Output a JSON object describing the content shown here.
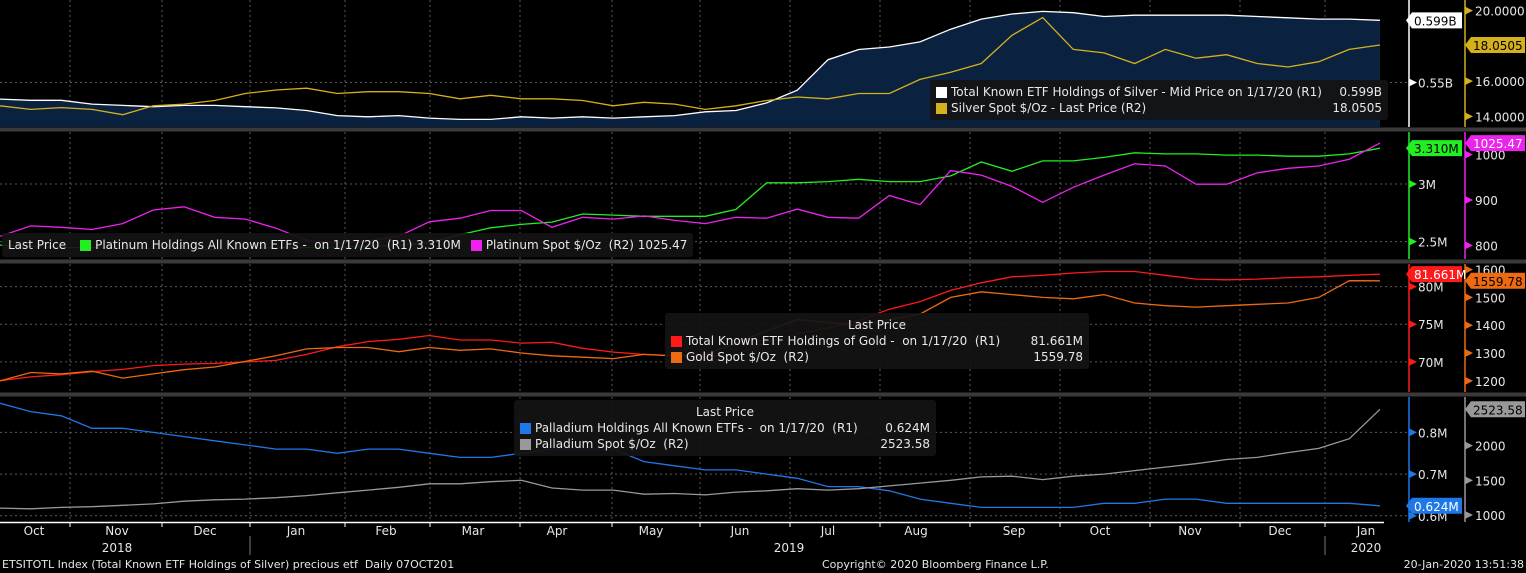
{
  "chart_data": [
    {
      "type": "line",
      "panel": "silver",
      "title": "Silver",
      "x_range": [
        "2018-10-01",
        "2020-01-17"
      ],
      "series": [
        {
          "name": "Total Known ETF Holdings of Silver - Mid Price on 1/17/20 (R1)",
          "axis": "R1",
          "color": "#ffffff",
          "area_fill": "#0a2240",
          "last_value": "0.599B",
          "values": [
            0.537,
            0.536,
            0.536,
            0.533,
            0.532,
            0.531,
            0.532,
            0.532,
            0.531,
            0.53,
            0.528,
            0.524,
            0.523,
            0.524,
            0.522,
            0.521,
            0.521,
            0.523,
            0.522,
            0.523,
            0.522,
            0.523,
            0.524,
            0.527,
            0.528,
            0.534,
            0.544,
            0.568,
            0.576,
            0.578,
            0.582,
            0.592,
            0.6,
            0.604,
            0.606,
            0.605,
            0.602,
            0.603,
            0.603,
            0.603,
            0.603,
            0.602,
            0.601,
            0.6,
            0.6,
            0.599
          ]
        },
        {
          "name": "Silver Spot $/Oz - Last Price (R2)",
          "axis": "R2",
          "color": "#d4b11c",
          "last_value": "18.0505",
          "values": [
            14.6,
            14.4,
            14.5,
            14.4,
            14.1,
            14.6,
            14.7,
            14.9,
            15.3,
            15.5,
            15.6,
            15.3,
            15.4,
            15.4,
            15.3,
            15.0,
            15.2,
            15.0,
            15.0,
            14.9,
            14.6,
            14.8,
            14.7,
            14.4,
            14.6,
            14.9,
            15.1,
            15.0,
            15.3,
            15.3,
            16.1,
            16.5,
            17.0,
            18.6,
            19.6,
            17.8,
            17.6,
            17.0,
            17.8,
            17.3,
            17.5,
            17.0,
            16.8,
            17.1,
            17.8,
            18.05
          ]
        }
      ],
      "r1_ticks": [
        "0.55B"
      ],
      "r1_range": [
        0.515,
        0.615
      ],
      "r2_ticks": [
        "14.0000",
        "16.0000",
        "20.0000"
      ],
      "r2_range": [
        13.4,
        20.6
      ]
    },
    {
      "type": "line",
      "panel": "platinum",
      "title": "Platinum",
      "series": [
        {
          "name": "Platinum Holdings All Known ETFs - on 1/17/20 (R1)",
          "axis": "R1",
          "color": "#22ee22",
          "last_value": "3.310M",
          "values": [
            2.47,
            2.46,
            2.45,
            2.45,
            2.44,
            2.44,
            2.44,
            2.43,
            2.44,
            2.45,
            2.45,
            2.45,
            2.46,
            2.47,
            2.49,
            2.56,
            2.62,
            2.65,
            2.67,
            2.74,
            2.73,
            2.72,
            2.72,
            2.72,
            2.78,
            3.01,
            3.01,
            3.02,
            3.04,
            3.02,
            3.02,
            3.07,
            3.19,
            3.11,
            3.2,
            3.2,
            3.23,
            3.27,
            3.26,
            3.26,
            3.25,
            3.25,
            3.24,
            3.24,
            3.26,
            3.31
          ]
        },
        {
          "name": "Platinum Spot $/Oz (R2)",
          "axis": "R2",
          "color": "#ee22ee",
          "last_value": "1025.47",
          "values": [
            820,
            843,
            840,
            835,
            848,
            878,
            885,
            862,
            858,
            838,
            811,
            805,
            810,
            820,
            852,
            860,
            877,
            877,
            840,
            862,
            858,
            865,
            855,
            848,
            862,
            860,
            880,
            862,
            860,
            910,
            890,
            965,
            955,
            930,
            895,
            928,
            955,
            980,
            975,
            935,
            935,
            960,
            970,
            975,
            990,
            1025.47
          ]
        }
      ],
      "r1_ticks": [
        "2.5M",
        "3M"
      ],
      "r1_range": [
        2.35,
        3.45
      ],
      "r2_ticks": [
        "800",
        "900",
        "1000"
      ],
      "r2_range": [
        770,
        1050
      ]
    },
    {
      "type": "line",
      "panel": "gold",
      "title": "Gold",
      "legend_header": "Last Price",
      "series": [
        {
          "name": "Total Known ETF Holdings of Gold - on 1/17/20 (R1)",
          "axis": "R1",
          "color": "#ff1a1a",
          "last_value": "81.661M",
          "values": [
            67.5,
            68.0,
            68.3,
            68.7,
            69.0,
            69.5,
            69.7,
            69.8,
            70.0,
            70.2,
            71.0,
            72.0,
            72.7,
            73.0,
            73.5,
            72.9,
            72.9,
            72.5,
            72.6,
            71.8,
            71.3,
            71.0,
            70.8,
            70.7,
            71.0,
            72.6,
            73.7,
            74.5,
            75.5,
            77.0,
            78.0,
            79.5,
            80.5,
            81.3,
            81.5,
            81.8,
            82.0,
            82.0,
            81.5,
            81.0,
            80.9,
            81.0,
            81.2,
            81.3,
            81.5,
            81.66
          ]
        },
        {
          "name": "Gold Spot $/Oz (R2)",
          "axis": "R2",
          "color": "#ee6a10",
          "last_value": "1559.78",
          "values": [
            1200,
            1230,
            1225,
            1235,
            1210,
            1225,
            1240,
            1250,
            1270,
            1290,
            1315,
            1320,
            1320,
            1305,
            1320,
            1310,
            1315,
            1300,
            1290,
            1285,
            1280,
            1295,
            1290,
            1295,
            1335,
            1380,
            1420,
            1410,
            1400,
            1420,
            1440,
            1500,
            1520,
            1510,
            1500,
            1495,
            1510,
            1480,
            1470,
            1465,
            1470,
            1475,
            1480,
            1500,
            1560,
            1559.78
          ]
        }
      ],
      "r1_ticks": [
        "70M",
        "75M",
        "80M"
      ],
      "r1_range": [
        66.0,
        83.0
      ],
      "r2_ticks": [
        "1200",
        "1300",
        "1400",
        "1500",
        "1600"
      ],
      "r2_range": [
        1160,
        1620
      ]
    },
    {
      "type": "line",
      "panel": "palladium",
      "title": "Palladium",
      "legend_header": "Last Price",
      "series": [
        {
          "name": "Palladium Holdings All Known ETFs - on 1/17/20 (R1)",
          "axis": "R1",
          "color": "#1e78e8",
          "last_value": "0.624M",
          "values": [
            0.87,
            0.85,
            0.84,
            0.81,
            0.81,
            0.8,
            0.79,
            0.78,
            0.77,
            0.76,
            0.76,
            0.75,
            0.76,
            0.76,
            0.75,
            0.74,
            0.74,
            0.75,
            0.76,
            0.76,
            0.76,
            0.73,
            0.72,
            0.71,
            0.71,
            0.7,
            0.69,
            0.67,
            0.67,
            0.66,
            0.64,
            0.63,
            0.62,
            0.62,
            0.62,
            0.62,
            0.63,
            0.63,
            0.64,
            0.64,
            0.63,
            0.63,
            0.63,
            0.63,
            0.63,
            0.624
          ]
        },
        {
          "name": "Palladium Spot $/Oz (R2)",
          "axis": "R2",
          "color": "#999999",
          "last_value": "2523.58",
          "values": [
            1100,
            1090,
            1110,
            1120,
            1140,
            1160,
            1200,
            1220,
            1230,
            1250,
            1280,
            1320,
            1360,
            1400,
            1450,
            1450,
            1480,
            1500,
            1390,
            1360,
            1360,
            1300,
            1310,
            1290,
            1330,
            1350,
            1380,
            1360,
            1380,
            1420,
            1460,
            1500,
            1550,
            1560,
            1510,
            1560,
            1590,
            1640,
            1690,
            1740,
            1800,
            1830,
            1900,
            1960,
            2100,
            2523.58
          ]
        }
      ],
      "r1_ticks": [
        "0.6M",
        "0.7M",
        "0.8M"
      ],
      "r1_range": [
        0.585,
        0.885
      ],
      "r2_ticks": [
        "1000",
        "1500",
        "2000"
      ],
      "r2_range": [
        900,
        2700
      ]
    }
  ],
  "x_axis": {
    "months": [
      "Oct",
      "Nov",
      "Dec",
      "Jan",
      "Feb",
      "Mar",
      "Apr",
      "May",
      "Jun",
      "Jul",
      "Aug",
      "Sep",
      "Oct",
      "Nov",
      "Dec",
      "Jan"
    ],
    "years": [
      "2018",
      "2019",
      "2020"
    ]
  },
  "legends": {
    "silver": {
      "rows": [
        {
          "label": "Total Known ETF Holdings of Silver - Mid Price on 1/17/20 (R1)",
          "value": "0.599B",
          "color": "#ffffff"
        },
        {
          "label": "Silver Spot $/Oz - Last Price (R2)",
          "value": "18.0505",
          "color": "#d4b11c"
        }
      ]
    },
    "platinum": {
      "header": "Last Price",
      "items": [
        {
          "label": "Platinum Holdings All Known ETFs -  on 1/17/20  (R1) 3.310M",
          "color": "#22ee22"
        },
        {
          "label": "Platinum Spot $/Oz  (R2) 1025.47",
          "color": "#ee22ee"
        }
      ]
    },
    "gold": {
      "header": "Last Price",
      "rows": [
        {
          "label": "Total Known ETF Holdings of Gold -  on 1/17/20  (R1)",
          "value": "81.661M",
          "color": "#ff1a1a"
        },
        {
          "label": "Gold Spot $/Oz  (R2)",
          "value": "1559.78",
          "color": "#ee6a10"
        }
      ]
    },
    "palladium": {
      "header": "Last Price",
      "rows": [
        {
          "label": "Palladium Holdings All Known ETFs -  on 1/17/20  (R1)",
          "value": "0.624M",
          "color": "#1e78e8"
        },
        {
          "label": "Palladium Spot $/Oz  (R2)",
          "value": "2523.58",
          "color": "#999999"
        }
      ]
    }
  },
  "footer": {
    "left": "ETSITOTL Index (Total Known ETF Holdings of Silver) precious etf  Daily 07OCT201",
    "center": "Copyright© 2020 Bloomberg Finance L.P.",
    "right": "20-Jan-2020 13:51:38"
  }
}
